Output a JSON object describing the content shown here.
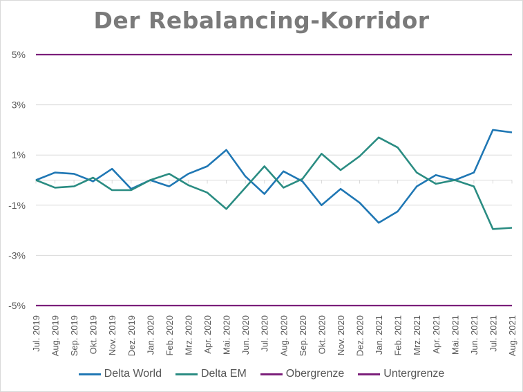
{
  "chart_data": {
    "type": "line",
    "title": "Der Rebalancing-Korridor",
    "categories": [
      "Jul. 2019",
      "Aug. 2019",
      "Sep. 2019",
      "Okt. 2019",
      "Nov. 2019",
      "Dez. 2019",
      "Jan. 2020",
      "Feb. 2020",
      "Mrz. 2020",
      "Apr. 2020",
      "Mai. 2020",
      "Jun. 2020",
      "Jul. 2020",
      "Aug. 2020",
      "Sep. 2020",
      "Okt. 2020",
      "Nov. 2020",
      "Dez. 2020",
      "Jan. 2021",
      "Feb. 2021",
      "Mrz. 2021",
      "Apr. 2021",
      "Mai. 2021",
      "Jun. 2021",
      "Jul. 2021",
      "Aug. 2021"
    ],
    "y_ticks": [
      "5%",
      "3%",
      "1%",
      "-1%",
      "-3%",
      "-5%"
    ],
    "ylim": [
      -5,
      5
    ],
    "grid": true,
    "legend_position": "bottom",
    "series": [
      {
        "name": "Delta World",
        "color": "#1F77B4",
        "values": [
          0.0,
          0.3,
          0.25,
          -0.05,
          0.45,
          -0.35,
          0.0,
          -0.25,
          0.25,
          0.55,
          1.2,
          0.15,
          -0.55,
          0.35,
          -0.05,
          -1.0,
          -0.35,
          -0.9,
          -1.7,
          -1.25,
          -0.25,
          0.2,
          0.0,
          0.3,
          2.0,
          1.9
        ]
      },
      {
        "name": "Delta EM",
        "color": "#2A8C82",
        "values": [
          0.0,
          -0.3,
          -0.25,
          0.1,
          -0.4,
          -0.4,
          0.0,
          0.25,
          -0.2,
          -0.5,
          -1.15,
          -0.3,
          0.55,
          -0.3,
          0.05,
          1.05,
          0.4,
          0.95,
          1.7,
          1.3,
          0.3,
          -0.15,
          0.0,
          -0.25,
          -1.95,
          -1.9
        ]
      },
      {
        "name": "Obergrenze",
        "color": "#7B1E7A",
        "values": [
          5,
          5,
          5,
          5,
          5,
          5,
          5,
          5,
          5,
          5,
          5,
          5,
          5,
          5,
          5,
          5,
          5,
          5,
          5,
          5,
          5,
          5,
          5,
          5,
          5,
          5
        ]
      },
      {
        "name": "Untergrenze",
        "color": "#7B1E7A",
        "values": [
          -5,
          -5,
          -5,
          -5,
          -5,
          -5,
          -5,
          -5,
          -5,
          -5,
          -5,
          -5,
          -5,
          -5,
          -5,
          -5,
          -5,
          -5,
          -5,
          -5,
          -5,
          -5,
          -5,
          -5,
          -5,
          -5
        ]
      }
    ]
  }
}
